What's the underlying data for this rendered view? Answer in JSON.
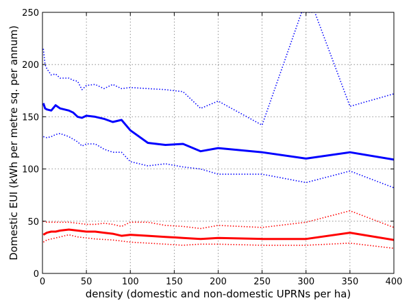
{
  "chart_data": {
    "type": "line",
    "title": "",
    "xlabel": "density (domestic and non-domestic UPRNs per ha)",
    "ylabel": "Domestic EUI (kWh per metre sq. per annum)",
    "xlim": [
      0,
      400
    ],
    "ylim": [
      0,
      250
    ],
    "xticks": [
      0,
      50,
      100,
      150,
      200,
      250,
      300,
      350,
      400
    ],
    "yticks": [
      0,
      50,
      100,
      150,
      200,
      250
    ],
    "grid": true,
    "colors": {
      "blue": "#0000ff",
      "red": "#ff0000"
    },
    "series": [
      {
        "id": "blue-median",
        "color": "#0000ff",
        "style": "solid",
        "x": [
          1,
          3,
          5,
          10,
          15,
          20,
          30,
          35,
          40,
          45,
          50,
          60,
          70,
          80,
          90,
          100,
          120,
          140,
          160,
          180,
          200,
          250,
          300,
          350,
          400
        ],
        "y": [
          163,
          158,
          157,
          156,
          161,
          158,
          156,
          154,
          150,
          149,
          151,
          150,
          148,
          145,
          147,
          137,
          125,
          123,
          124,
          117,
          120,
          116,
          110,
          116,
          109
        ]
      },
      {
        "id": "blue-upper",
        "color": "#0000ff",
        "style": "dotted",
        "x": [
          1,
          3,
          5,
          10,
          15,
          20,
          30,
          35,
          40,
          45,
          50,
          60,
          70,
          80,
          90,
          100,
          120,
          140,
          160,
          180,
          200,
          250,
          295,
          310,
          350,
          400
        ],
        "y": [
          215,
          200,
          196,
          190,
          191,
          187,
          187,
          185,
          184,
          176,
          180,
          181,
          177,
          181,
          177,
          178,
          177,
          176,
          174,
          158,
          165,
          142,
          250,
          250,
          160,
          172
        ]
      },
      {
        "id": "blue-lower",
        "color": "#0000ff",
        "style": "dotted",
        "x": [
          1,
          5,
          10,
          15,
          20,
          30,
          40,
          45,
          50,
          60,
          70,
          80,
          90,
          100,
          120,
          140,
          160,
          180,
          200,
          250,
          300,
          350,
          400
        ],
        "y": [
          131,
          130,
          131,
          133,
          134,
          131,
          126,
          122,
          124,
          124,
          119,
          116,
          116,
          107,
          103,
          105,
          102,
          100,
          95,
          95,
          87,
          98,
          82
        ]
      },
      {
        "id": "red-median",
        "color": "#ff0000",
        "style": "solid",
        "x": [
          1,
          5,
          10,
          15,
          20,
          30,
          40,
          50,
          60,
          70,
          80,
          90,
          100,
          120,
          140,
          160,
          180,
          200,
          250,
          300,
          350,
          400
        ],
        "y": [
          37,
          39,
          40,
          40,
          41,
          42,
          41,
          40,
          40,
          39,
          38,
          36,
          37,
          36,
          35,
          34,
          33,
          34,
          33,
          33,
          39,
          32
        ]
      },
      {
        "id": "red-upper",
        "color": "#ff0000",
        "style": "dotted",
        "x": [
          1,
          5,
          10,
          20,
          30,
          40,
          50,
          60,
          70,
          80,
          90,
          100,
          120,
          140,
          160,
          180,
          200,
          250,
          300,
          350,
          400
        ],
        "y": [
          50,
          49,
          49,
          49,
          49,
          48,
          47,
          47,
          48,
          47,
          45,
          49,
          49,
          46,
          45,
          43,
          46,
          44,
          49,
          60,
          44
        ]
      },
      {
        "id": "red-lower",
        "color": "#ff0000",
        "style": "dotted",
        "x": [
          1,
          5,
          10,
          20,
          30,
          40,
          50,
          60,
          80,
          100,
          120,
          140,
          160,
          180,
          200,
          250,
          300,
          350,
          400
        ],
        "y": [
          30,
          32,
          33,
          35,
          37,
          35,
          34,
          33,
          32,
          30,
          29,
          28,
          27,
          28,
          28,
          27,
          27,
          29,
          24
        ]
      }
    ]
  }
}
